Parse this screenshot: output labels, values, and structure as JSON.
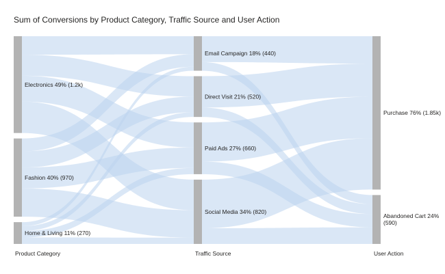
{
  "chart_data": {
    "type": "sankey",
    "title": "Sum of Conversions by Product Category, Traffic Source and User Action",
    "columns": [
      "Product Category",
      "Traffic Source",
      "User Action"
    ],
    "nodes": [
      {
        "id": "electronics",
        "column": 0,
        "label": "Electronics 49% (1.2k)",
        "value": 1200
      },
      {
        "id": "fashion",
        "column": 0,
        "label": "Fashion 40% (970)",
        "value": 970
      },
      {
        "id": "home",
        "column": 0,
        "label": "Home & Living 11% (270)",
        "value": 270
      },
      {
        "id": "email",
        "column": 1,
        "label": "Email Campaign 18% (440)",
        "value": 440
      },
      {
        "id": "direct",
        "column": 1,
        "label": "Direct Visit 21% (520)",
        "value": 520
      },
      {
        "id": "paid",
        "column": 1,
        "label": "Paid Ads 27% (660)",
        "value": 660
      },
      {
        "id": "social",
        "column": 1,
        "label": "Social Media 34% (820)",
        "value": 820
      },
      {
        "id": "purchase",
        "column": 2,
        "label": "Purchase 76% (1.85k)",
        "value": 1850
      },
      {
        "id": "abandoned",
        "column": 2,
        "label": "Abandoned Cart 24% (590)",
        "value": 590
      }
    ],
    "links": [
      {
        "source": "electronics",
        "target": "email",
        "value": 230
      },
      {
        "source": "electronics",
        "target": "direct",
        "value": 260
      },
      {
        "source": "electronics",
        "target": "paid",
        "value": 320
      },
      {
        "source": "electronics",
        "target": "social",
        "value": 390
      },
      {
        "source": "fashion",
        "target": "email",
        "value": 160
      },
      {
        "source": "fashion",
        "target": "direct",
        "value": 200
      },
      {
        "source": "fashion",
        "target": "paid",
        "value": 260
      },
      {
        "source": "fashion",
        "target": "social",
        "value": 350
      },
      {
        "source": "home",
        "target": "email",
        "value": 50
      },
      {
        "source": "home",
        "target": "direct",
        "value": 60
      },
      {
        "source": "home",
        "target": "paid",
        "value": 80
      },
      {
        "source": "home",
        "target": "social",
        "value": 80
      },
      {
        "source": "email",
        "target": "purchase",
        "value": 330
      },
      {
        "source": "email",
        "target": "abandoned",
        "value": 110
      },
      {
        "source": "direct",
        "target": "purchase",
        "value": 400
      },
      {
        "source": "direct",
        "target": "abandoned",
        "value": 120
      },
      {
        "source": "paid",
        "target": "purchase",
        "value": 500
      },
      {
        "source": "paid",
        "target": "abandoned",
        "value": 160
      },
      {
        "source": "social",
        "target": "purchase",
        "value": 620
      },
      {
        "source": "social",
        "target": "abandoned",
        "value": 200
      }
    ],
    "colors": {
      "node": "#b3b3b3",
      "link": "#bcd3ef",
      "text": "#252423"
    }
  }
}
